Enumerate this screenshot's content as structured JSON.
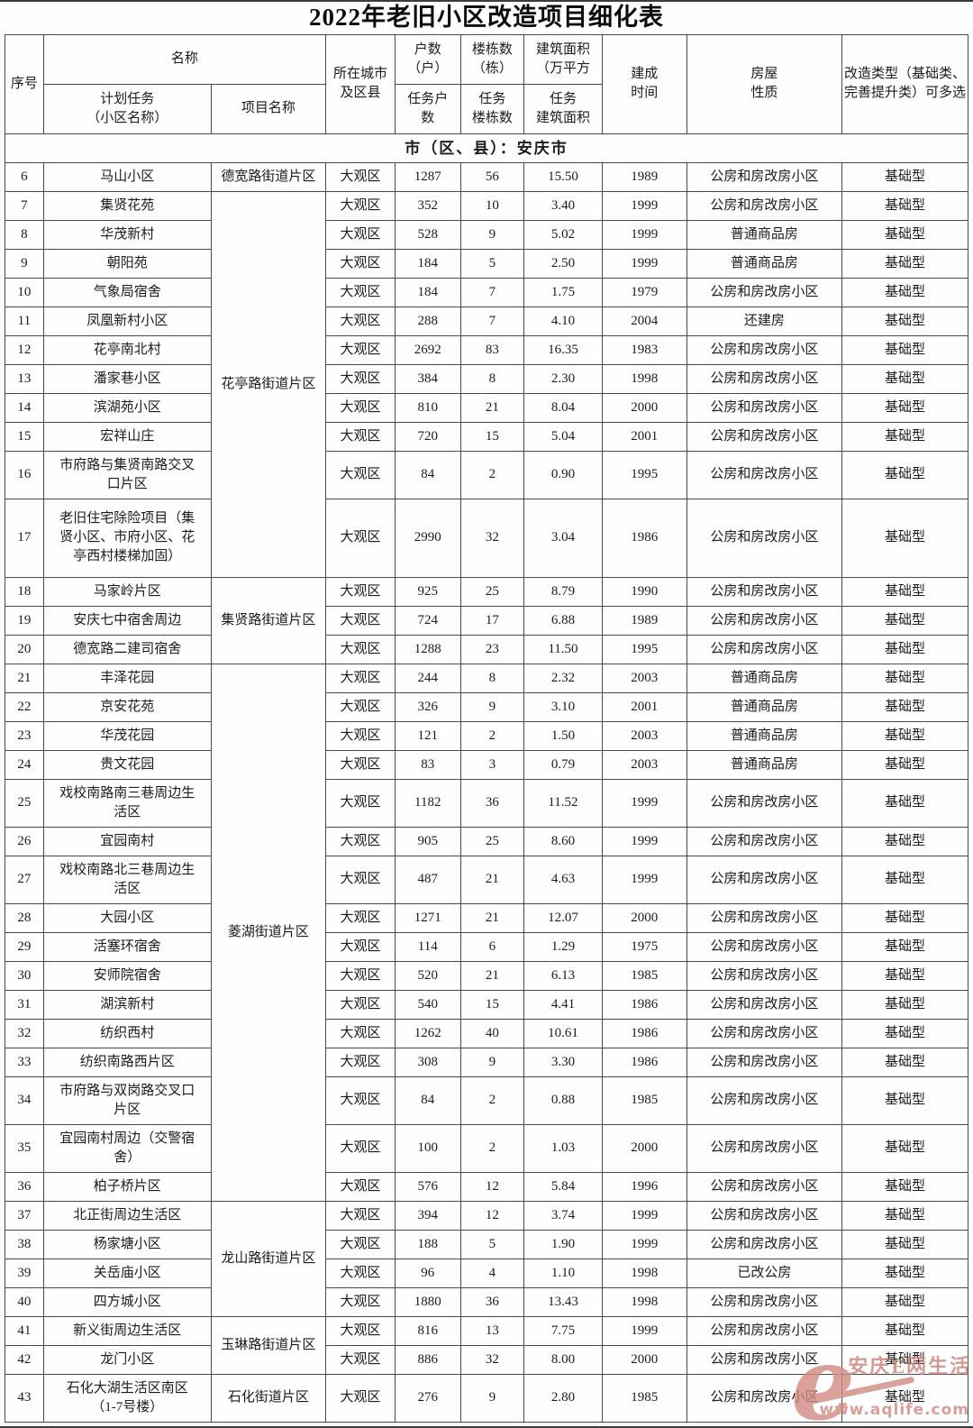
{
  "title": "2022年老旧小区改造项目细化表",
  "header": {
    "col_seq": "序号",
    "col_name_group": "名称",
    "col_plan_task": "计划任务\n（小区名称）",
    "col_project": "项目名称",
    "col_city": "所在城市\n及区县",
    "col_households": "户数\n（户）",
    "col_households_task": "任务户\n数",
    "col_buildings": "楼栋数\n（栋）",
    "col_buildings_task": "任务\n楼栋数",
    "col_area": "建筑面积\n（万平方",
    "col_area_task": "任务\n建筑面积",
    "col_year": "建成\n时间",
    "col_nature": "房屋\n性质",
    "col_type": "改造类型（基础类、\n完善提升类）可多选"
  },
  "section_label": "市（区、县）：安庆市",
  "rows": [
    {
      "seq": "6",
      "name": "马山小区",
      "project": "德宽路街道片区",
      "project_span": 1,
      "city": "大观区",
      "households": "1287",
      "buildings": "56",
      "area": "15.50",
      "year": "1989",
      "nature": "公房和房改房小区",
      "type": "基础型"
    },
    {
      "seq": "7",
      "name": "集贤花苑",
      "project": "花亭路街道片区",
      "project_span": 11,
      "city": "大观区",
      "households": "352",
      "buildings": "10",
      "area": "3.40",
      "year": "1999",
      "nature": "公房和房改房小区",
      "type": "基础型"
    },
    {
      "seq": "8",
      "name": "华茂新村",
      "city": "大观区",
      "households": "528",
      "buildings": "9",
      "area": "5.02",
      "year": "1999",
      "nature": "普通商品房",
      "type": "基础型"
    },
    {
      "seq": "9",
      "name": "朝阳苑",
      "city": "大观区",
      "households": "184",
      "buildings": "5",
      "area": "2.50",
      "year": "1999",
      "nature": "普通商品房",
      "type": "基础型"
    },
    {
      "seq": "10",
      "name": "气象局宿舍",
      "city": "大观区",
      "households": "184",
      "buildings": "7",
      "area": "1.75",
      "year": "1979",
      "nature": "公房和房改房小区",
      "type": "基础型"
    },
    {
      "seq": "11",
      "name": "凤凰新村小区",
      "city": "大观区",
      "households": "288",
      "buildings": "7",
      "area": "4.10",
      "year": "2004",
      "nature": "还建房",
      "type": "基础型"
    },
    {
      "seq": "12",
      "name": "花亭南北村",
      "city": "大观区",
      "households": "2692",
      "buildings": "83",
      "area": "16.35",
      "year": "1983",
      "nature": "公房和房改房小区",
      "type": "基础型"
    },
    {
      "seq": "13",
      "name": "潘家巷小区",
      "city": "大观区",
      "households": "384",
      "buildings": "8",
      "area": "2.30",
      "year": "1998",
      "nature": "公房和房改房小区",
      "type": "基础型"
    },
    {
      "seq": "14",
      "name": "滨湖苑小区",
      "city": "大观区",
      "households": "810",
      "buildings": "21",
      "area": "8.04",
      "year": "2000",
      "nature": "公房和房改房小区",
      "type": "基础型"
    },
    {
      "seq": "15",
      "name": "宏祥山庄",
      "city": "大观区",
      "households": "720",
      "buildings": "15",
      "area": "5.04",
      "year": "2001",
      "nature": "公房和房改房小区",
      "type": "基础型"
    },
    {
      "seq": "16",
      "name": "市府路与集贤南路交叉\n口片区",
      "city": "大观区",
      "households": "84",
      "buildings": "2",
      "area": "0.90",
      "year": "1995",
      "nature": "公房和房改房小区",
      "type": "基础型"
    },
    {
      "seq": "17",
      "name": "老旧住宅除险项目（集\n贤小区、市府小区、花\n亭西村楼梯加固）",
      "tall": true,
      "city": "大观区",
      "households": "2990",
      "buildings": "32",
      "area": "3.04",
      "year": "1986",
      "nature": "公房和房改房小区",
      "type": "基础型"
    },
    {
      "seq": "18",
      "name": "马家岭片区",
      "project": "集贤路街道片区",
      "project_span": 3,
      "city": "大观区",
      "households": "925",
      "buildings": "25",
      "area": "8.79",
      "year": "1990",
      "nature": "公房和房改房小区",
      "type": "基础型"
    },
    {
      "seq": "19",
      "name": "安庆七中宿舍周边",
      "city": "大观区",
      "households": "724",
      "buildings": "17",
      "area": "6.88",
      "year": "1989",
      "nature": "公房和房改房小区",
      "type": "基础型"
    },
    {
      "seq": "20",
      "name": "德宽路二建司宿舍",
      "city": "大观区",
      "households": "1288",
      "buildings": "23",
      "area": "11.50",
      "year": "1995",
      "nature": "公房和房改房小区",
      "type": "基础型"
    },
    {
      "seq": "21",
      "name": "丰泽花园",
      "project": "菱湖街道片区",
      "project_span": 16,
      "city": "大观区",
      "households": "244",
      "buildings": "8",
      "area": "2.32",
      "year": "2003",
      "nature": "普通商品房",
      "type": "基础型"
    },
    {
      "seq": "22",
      "name": "京安花苑",
      "city": "大观区",
      "households": "326",
      "buildings": "9",
      "area": "3.10",
      "year": "2001",
      "nature": "普通商品房",
      "type": "基础型"
    },
    {
      "seq": "23",
      "name": "华茂花园",
      "city": "大观区",
      "households": "121",
      "buildings": "2",
      "area": "1.50",
      "year": "2003",
      "nature": "普通商品房",
      "type": "基础型"
    },
    {
      "seq": "24",
      "name": "贵文花园",
      "city": "大观区",
      "households": "83",
      "buildings": "3",
      "area": "0.79",
      "year": "2003",
      "nature": "普通商品房",
      "type": "基础型"
    },
    {
      "seq": "25",
      "name": "戏校南路南三巷周边生\n活区",
      "city": "大观区",
      "households": "1182",
      "buildings": "36",
      "area": "11.52",
      "year": "1999",
      "nature": "公房和房改房小区",
      "type": "基础型"
    },
    {
      "seq": "26",
      "name": "宜园南村",
      "city": "大观区",
      "households": "905",
      "buildings": "25",
      "area": "8.60",
      "year": "1999",
      "nature": "公房和房改房小区",
      "type": "基础型"
    },
    {
      "seq": "27",
      "name": "戏校南路北三巷周边生\n活区",
      "city": "大观区",
      "households": "487",
      "buildings": "21",
      "area": "4.63",
      "year": "1999",
      "nature": "公房和房改房小区",
      "type": "基础型"
    },
    {
      "seq": "28",
      "name": "大园小区",
      "city": "大观区",
      "households": "1271",
      "buildings": "21",
      "area": "12.07",
      "year": "2000",
      "nature": "公房和房改房小区",
      "type": "基础型"
    },
    {
      "seq": "29",
      "name": "活塞环宿舍",
      "city": "大观区",
      "households": "114",
      "buildings": "6",
      "area": "1.29",
      "year": "1975",
      "nature": "公房和房改房小区",
      "type": "基础型"
    },
    {
      "seq": "30",
      "name": "安师院宿舍",
      "city": "大观区",
      "households": "520",
      "buildings": "21",
      "area": "6.13",
      "year": "1985",
      "nature": "公房和房改房小区",
      "type": "基础型"
    },
    {
      "seq": "31",
      "name": "湖滨新村",
      "city": "大观区",
      "households": "540",
      "buildings": "15",
      "area": "4.41",
      "year": "1986",
      "nature": "公房和房改房小区",
      "type": "基础型"
    },
    {
      "seq": "32",
      "name": "纺织西村",
      "city": "大观区",
      "households": "1262",
      "buildings": "40",
      "area": "10.61",
      "year": "1986",
      "nature": "公房和房改房小区",
      "type": "基础型"
    },
    {
      "seq": "33",
      "name": "纺织南路西片区",
      "city": "大观区",
      "households": "308",
      "buildings": "9",
      "area": "3.30",
      "year": "1986",
      "nature": "公房和房改房小区",
      "type": "基础型"
    },
    {
      "seq": "34",
      "name": "市府路与双岗路交叉口\n片区",
      "city": "大观区",
      "households": "84",
      "buildings": "2",
      "area": "0.88",
      "year": "1985",
      "nature": "公房和房改房小区",
      "type": "基础型"
    },
    {
      "seq": "35",
      "name": "宜园南村周边（交警宿\n舍）",
      "city": "大观区",
      "households": "100",
      "buildings": "2",
      "area": "1.03",
      "year": "2000",
      "nature": "公房和房改房小区",
      "type": "基础型"
    },
    {
      "seq": "36",
      "name": "柏子桥片区",
      "city": "大观区",
      "households": "576",
      "buildings": "12",
      "area": "5.84",
      "year": "1996",
      "nature": "公房和房改房小区",
      "type": "基础型"
    },
    {
      "seq": "37",
      "name": "北正街周边生活区",
      "project": "龙山路街道片区",
      "project_span": 4,
      "city": "大观区",
      "households": "394",
      "buildings": "12",
      "area": "3.74",
      "year": "1999",
      "nature": "公房和房改房小区",
      "type": "基础型"
    },
    {
      "seq": "38",
      "name": "杨家塘小区",
      "city": "大观区",
      "households": "188",
      "buildings": "5",
      "area": "1.90",
      "year": "1999",
      "nature": "公房和房改房小区",
      "type": "基础型"
    },
    {
      "seq": "39",
      "name": "关岳庙小区",
      "city": "大观区",
      "households": "96",
      "buildings": "4",
      "area": "1.10",
      "year": "1998",
      "nature": "已改公房",
      "type": "基础型"
    },
    {
      "seq": "40",
      "name": "四方城小区",
      "city": "大观区",
      "households": "1880",
      "buildings": "36",
      "area": "13.43",
      "year": "1998",
      "nature": "公房和房改房小区",
      "type": "基础型"
    },
    {
      "seq": "41",
      "name": "新义街周边生活区",
      "project": "玉琳路街道片区",
      "project_span": 2,
      "city": "大观区",
      "households": "816",
      "buildings": "13",
      "area": "7.75",
      "year": "1999",
      "nature": "公房和房改房小区",
      "type": "基础型"
    },
    {
      "seq": "42",
      "name": "龙门小区",
      "city": "大观区",
      "households": "886",
      "buildings": "32",
      "area": "8.00",
      "year": "2000",
      "nature": "公房和房改房小区",
      "type": "基础型"
    },
    {
      "seq": "43",
      "name": "石化大湖生活区南区\n（1-7号楼）",
      "project": "石化街道片区",
      "project_span": 1,
      "city": "大观区",
      "households": "276",
      "buildings": "9",
      "area": "2.80",
      "year": "1985",
      "nature": "公房和房改房小区",
      "type": "基础型"
    }
  ],
  "watermark": {
    "letter": "e",
    "site_name": "安庆E网生活",
    "site_url": "www.aqlife.com",
    "color": "#cf8b82"
  }
}
